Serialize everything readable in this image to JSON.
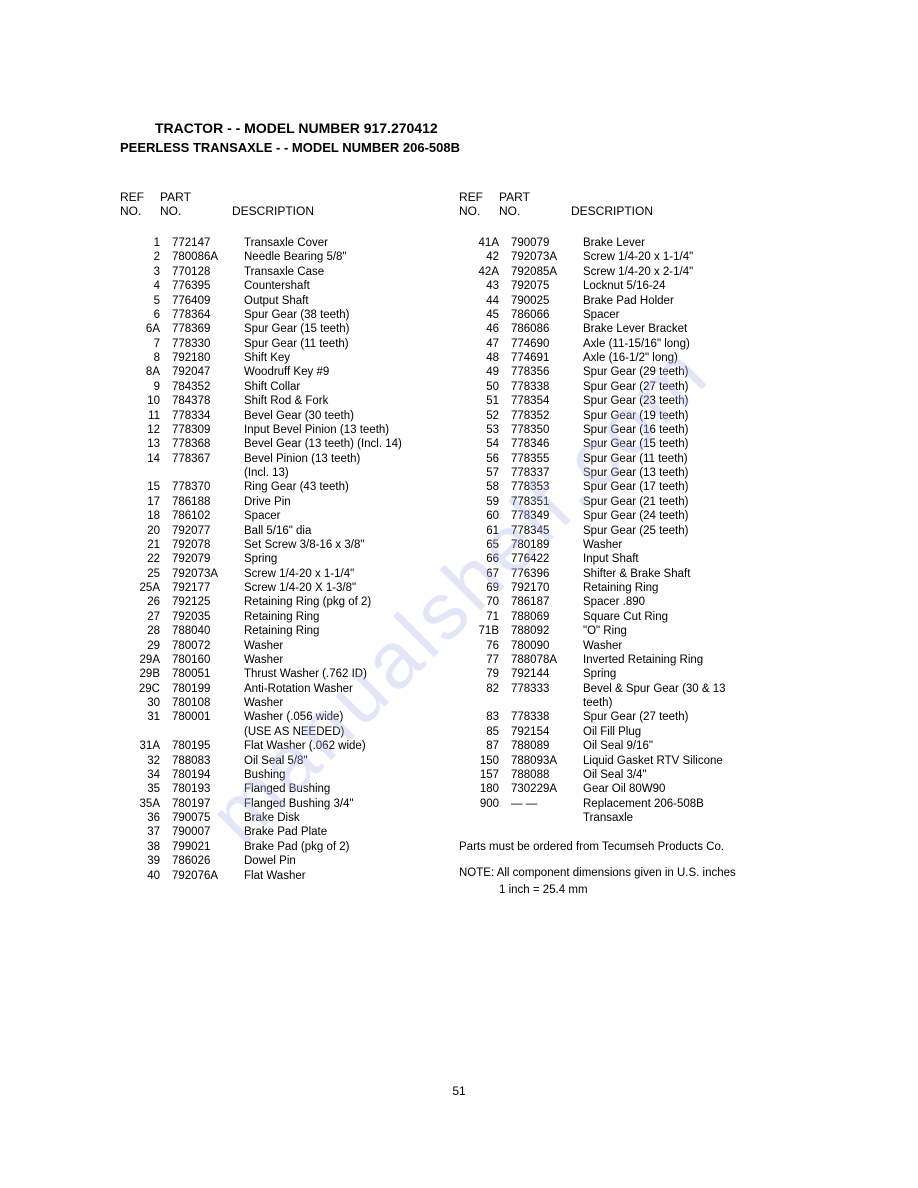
{
  "title": "TRACTOR - - MODEL NUMBER 917.270412",
  "subtitle": "PEERLESS TRANSAXLE - - MODEL NUMBER 206-508B",
  "headers": {
    "ref": "REF",
    "no": "NO.",
    "part": "PART",
    "desc": "DESCRIPTION"
  },
  "left_parts": [
    {
      "ref": "1",
      "part": "772147",
      "desc": "Transaxle Cover"
    },
    {
      "ref": "2",
      "part": "780086A",
      "desc": "Needle Bearing 5/8\""
    },
    {
      "ref": "3",
      "part": "770128",
      "desc": "Transaxle Case"
    },
    {
      "ref": "4",
      "part": "776395",
      "desc": "Countershaft"
    },
    {
      "ref": "5",
      "part": "776409",
      "desc": "Output Shaft"
    },
    {
      "ref": "6",
      "part": "778364",
      "desc": "Spur Gear (38 teeth)"
    },
    {
      "ref": "6A",
      "part": "778369",
      "desc": "Spur Gear (15 teeth)"
    },
    {
      "ref": "7",
      "part": "778330",
      "desc": "Spur Gear (11 teeth)"
    },
    {
      "ref": "8",
      "part": "792180",
      "desc": "Shift Key"
    },
    {
      "ref": "8A",
      "part": "792047",
      "desc": "Woodruff Key #9"
    },
    {
      "ref": "9",
      "part": "784352",
      "desc": "Shift Collar"
    },
    {
      "ref": "10",
      "part": "784378",
      "desc": "Shift Rod & Fork"
    },
    {
      "ref": "11",
      "part": "778334",
      "desc": "Bevel Gear (30 teeth)"
    },
    {
      "ref": "12",
      "part": "778309",
      "desc": "Input Bevel Pinion (13 teeth)"
    },
    {
      "ref": "13",
      "part": "778368",
      "desc": "Bevel Gear (13 teeth) (Incl. 14)"
    },
    {
      "ref": "14",
      "part": "778367",
      "desc": "Bevel Pinion (13 teeth)"
    },
    {
      "ref": "",
      "part": "",
      "desc": "(Incl. 13)"
    },
    {
      "ref": "15",
      "part": "778370",
      "desc": "Ring Gear (43 teeth)"
    },
    {
      "ref": "17",
      "part": "786188",
      "desc": "Drive Pin"
    },
    {
      "ref": "18",
      "part": "786102",
      "desc": "Spacer"
    },
    {
      "ref": "20",
      "part": "792077",
      "desc": "Ball 5/16\" dia"
    },
    {
      "ref": "21",
      "part": "792078",
      "desc": "Set Screw 3/8-16 x 3/8\""
    },
    {
      "ref": "22",
      "part": "792079",
      "desc": "Spring"
    },
    {
      "ref": "25",
      "part": "792073A",
      "desc": "Screw 1/4-20 x 1-1/4\""
    },
    {
      "ref": "25A",
      "part": "792177",
      "desc": "Screw 1/4-20 X 1-3/8\""
    },
    {
      "ref": "26",
      "part": "792125",
      "desc": "Retaining Ring (pkg of 2)"
    },
    {
      "ref": "27",
      "part": "792035",
      "desc": "Retaining Ring"
    },
    {
      "ref": "28",
      "part": "788040",
      "desc": "Retaining Ring"
    },
    {
      "ref": "29",
      "part": "780072",
      "desc": "Washer"
    },
    {
      "ref": "29A",
      "part": "780160",
      "desc": "Washer"
    },
    {
      "ref": "29B",
      "part": "780051",
      "desc": "Thrust Washer (.762 ID)"
    },
    {
      "ref": "29C",
      "part": "780199",
      "desc": "Anti-Rotation Washer"
    },
    {
      "ref": "30",
      "part": "780108",
      "desc": "Washer"
    },
    {
      "ref": "31",
      "part": "780001",
      "desc": "Washer (.056 wide)"
    },
    {
      "ref": "",
      "part": "",
      "desc": "(USE AS NEEDED)"
    },
    {
      "ref": "31A",
      "part": "780195",
      "desc": "Flat Washer (.062 wide)"
    },
    {
      "ref": "32",
      "part": "788083",
      "desc": "Oil Seal 5/8\""
    },
    {
      "ref": "34",
      "part": "780194",
      "desc": "Bushing"
    },
    {
      "ref": "35",
      "part": "780193",
      "desc": "Flanged Bushing"
    },
    {
      "ref": "35A",
      "part": "780197",
      "desc": "Flanged Bushing 3/4\""
    },
    {
      "ref": "36",
      "part": "790075",
      "desc": "Brake Disk"
    },
    {
      "ref": "37",
      "part": "790007",
      "desc": "Brake Pad Plate"
    },
    {
      "ref": "38",
      "part": "799021",
      "desc": "Brake Pad (pkg of 2)"
    },
    {
      "ref": "39",
      "part": "786026",
      "desc": "Dowel Pin"
    },
    {
      "ref": "40",
      "part": "792076A",
      "desc": "Flat Washer"
    }
  ],
  "right_parts": [
    {
      "ref": "41A",
      "part": "790079",
      "desc": "Brake Lever"
    },
    {
      "ref": "42",
      "part": "792073A",
      "desc": "Screw 1/4-20 x 1-1/4\""
    },
    {
      "ref": "42A",
      "part": "792085A",
      "desc": "Screw 1/4-20 x 2-1/4\""
    },
    {
      "ref": "43",
      "part": "792075",
      "desc": "Locknut 5/16-24"
    },
    {
      "ref": "44",
      "part": "790025",
      "desc": "Brake Pad Holder"
    },
    {
      "ref": "45",
      "part": "786066",
      "desc": "Spacer"
    },
    {
      "ref": "46",
      "part": "786086",
      "desc": "Brake Lever Bracket"
    },
    {
      "ref": "47",
      "part": "774690",
      "desc": "Axle (11-15/16\" long)"
    },
    {
      "ref": "48",
      "part": "774691",
      "desc": "Axle (16-1/2\" long)"
    },
    {
      "ref": "49",
      "part": "778356",
      "desc": "Spur Gear (29 teeth)"
    },
    {
      "ref": "50",
      "part": "778338",
      "desc": "Spur Gear (27 teeth)"
    },
    {
      "ref": "51",
      "part": "778354",
      "desc": "Spur Gear (23 teeth)"
    },
    {
      "ref": "52",
      "part": "778352",
      "desc": "Spur Gear (19 teeth)"
    },
    {
      "ref": "53",
      "part": "778350",
      "desc": "Spur Gear (16 teeth)"
    },
    {
      "ref": "54",
      "part": "778346",
      "desc": "Spur Gear (15 teeth)"
    },
    {
      "ref": "56",
      "part": "778355",
      "desc": "Spur Gear (11 teeth)"
    },
    {
      "ref": "57",
      "part": "778337",
      "desc": "Spur Gear (13 teeth)"
    },
    {
      "ref": "58",
      "part": "778353",
      "desc": "Spur Gear (17 teeth)"
    },
    {
      "ref": "59",
      "part": "778351",
      "desc": "Spur Gear (21 teeth)"
    },
    {
      "ref": "60",
      "part": "778349",
      "desc": "Spur Gear (24 teeth)"
    },
    {
      "ref": "61",
      "part": "778345",
      "desc": "Spur Gear (25 teeth)"
    },
    {
      "ref": "65",
      "part": "780189",
      "desc": "Washer"
    },
    {
      "ref": "66",
      "part": "776422",
      "desc": "Input Shaft"
    },
    {
      "ref": "67",
      "part": "776396",
      "desc": "Shifter & Brake Shaft"
    },
    {
      "ref": "69",
      "part": "792170",
      "desc": "Retaining Ring"
    },
    {
      "ref": "70",
      "part": "786187",
      "desc": "Spacer .890"
    },
    {
      "ref": "71",
      "part": "788069",
      "desc": "Square Cut Ring"
    },
    {
      "ref": "71B",
      "part": "788092",
      "desc": "\"O\" Ring"
    },
    {
      "ref": "76",
      "part": "780090",
      "desc": "Washer"
    },
    {
      "ref": "77",
      "part": "788078A",
      "desc": "Inverted Retaining Ring"
    },
    {
      "ref": "79",
      "part": "792144",
      "desc": "Spring"
    },
    {
      "ref": "82",
      "part": "778333",
      "desc": "Bevel & Spur Gear (30 & 13"
    },
    {
      "ref": "",
      "part": "",
      "desc": "teeth)"
    },
    {
      "ref": "83",
      "part": "778338",
      "desc": "Spur Gear (27 teeth)"
    },
    {
      "ref": "85",
      "part": "792154",
      "desc": "Oil Fill Plug"
    },
    {
      "ref": "87",
      "part": "788089",
      "desc": "Oil Seal 9/16\""
    },
    {
      "ref": "150",
      "part": "788093A",
      "desc": "Liquid Gasket RTV Silicone"
    },
    {
      "ref": "157",
      "part": "788088",
      "desc": "Oil Seal 3/4\""
    },
    {
      "ref": "180",
      "part": "730229A",
      "desc": "Gear Oil 80W90"
    },
    {
      "ref": "900",
      "part": "— —",
      "desc": "Replacement 206-508B"
    },
    {
      "ref": "",
      "part": "",
      "desc": "Transaxle"
    }
  ],
  "footer_note1": "Parts must be ordered from Tecumseh Products Co.",
  "footer_note2": "NOTE:  All component dimensions given in U.S. inches",
  "footer_note3": "1 inch = 25.4 mm",
  "page_number": "51",
  "watermark": "manualshelf.com"
}
